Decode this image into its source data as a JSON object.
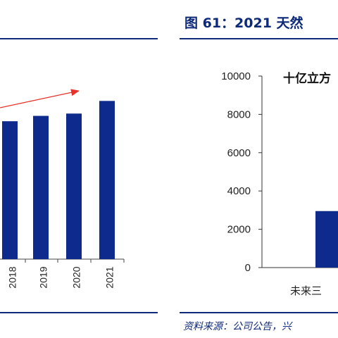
{
  "right_panel": {
    "title": "图 61：2021 天然",
    "source": "资料来源：公司公告，兴"
  },
  "chart_data": [
    {
      "type": "bar",
      "panel": "left",
      "categories": [
        "2018",
        "2019",
        "2020",
        "2021"
      ],
      "values": [
        7200,
        7480,
        7600,
        8260
      ],
      "ylim": [
        0,
        10000
      ],
      "annotations": [
        {
          "kind": "arrow",
          "color": "#e8312a",
          "meaning": "upward trend"
        }
      ],
      "bar_color": "#0d2a8c",
      "grid": false
    },
    {
      "type": "bar",
      "panel": "right",
      "title": "十亿立方",
      "categories": [
        "未来三"
      ],
      "values": [
        2950
      ],
      "ylim": [
        0,
        10000
      ],
      "yticks": [
        "0",
        "2000",
        "4000",
        "6000",
        "8000",
        "10000"
      ],
      "bar_color": "#0d2a8c",
      "grid": false
    }
  ]
}
